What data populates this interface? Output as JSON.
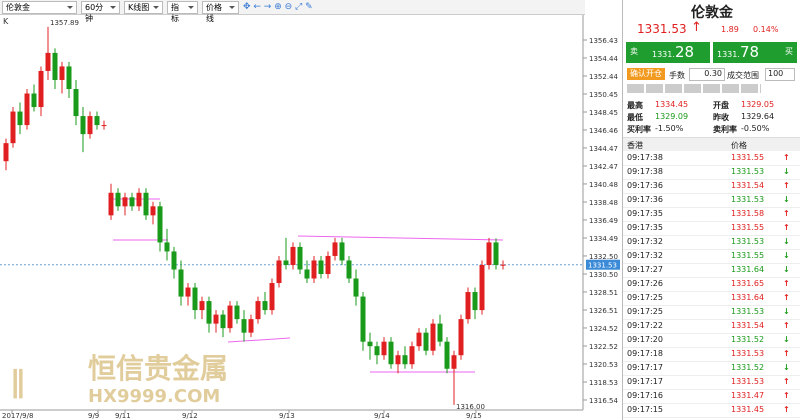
{
  "toolbar": {
    "symbol": "伦敦金",
    "period": "60分钟",
    "chart_kind": "K线图",
    "indicator": "指标",
    "price_line": "价格线"
  },
  "chart": {
    "type": "candlestick",
    "label": "K",
    "up_color": "#e02020",
    "down_color": "#1a9a1a",
    "ylim": [
      1315.43,
      1359.2
    ],
    "yticks": [
      1356.43,
      1354.44,
      1352.44,
      1350.45,
      1348.45,
      1346.46,
      1344.47,
      1342.47,
      1340.48,
      1338.48,
      1336.49,
      1334.49,
      {
        "value": 1332.5,
        "label": "1332.50"
      },
      {
        "value": 1330.5,
        "label": "1330.50"
      },
      1328.51,
      1326.51,
      1324.52,
      1322.52,
      1320.53,
      1318.53,
      1316.54
    ],
    "last_price": 1331.53,
    "xlabels": [
      "2017/9/8",
      "9/9",
      "9/11",
      "9/12",
      "9/13",
      "9/14",
      "9/15"
    ],
    "annotations": [
      "1357.89",
      "1316.00"
    ],
    "candles": [
      [
        1343.0,
        1345.5,
        1342.0,
        1345.0
      ],
      [
        1345.0,
        1349.0,
        1344.5,
        1348.5
      ],
      [
        1348.5,
        1349.5,
        1346.0,
        1347.0
      ],
      [
        1347.0,
        1351.0,
        1346.5,
        1350.5
      ],
      [
        1350.5,
        1351.5,
        1348.5,
        1349.0
      ],
      [
        1349.0,
        1353.5,
        1348.0,
        1353.0
      ],
      [
        1353.0,
        1357.89,
        1352.0,
        1355.0
      ],
      [
        1355.0,
        1355.5,
        1351.0,
        1352.0
      ],
      [
        1352.0,
        1354.0,
        1350.5,
        1353.5
      ],
      [
        1353.5,
        1354.0,
        1350.0,
        1351.0
      ],
      [
        1351.0,
        1352.0,
        1347.0,
        1348.0
      ],
      [
        1348.0,
        1349.0,
        1344.0,
        1346.0
      ],
      [
        1346.0,
        1348.5,
        1345.5,
        1348.0
      ],
      [
        1348.0,
        1348.5,
        1346.5,
        1347.0
      ],
      [
        1347.0,
        1347.5,
        1346.5,
        1347.0
      ],
      [
        1337.0,
        1340.5,
        1336.5,
        1339.5
      ],
      [
        1339.5,
        1340.0,
        1337.5,
        1338.0
      ],
      [
        1338.0,
        1339.5,
        1337.0,
        1339.0
      ],
      [
        1339.0,
        1339.5,
        1337.5,
        1338.0
      ],
      [
        1338.0,
        1340.0,
        1337.5,
        1339.5
      ],
      [
        1339.5,
        1340.0,
        1336.5,
        1337.0
      ],
      [
        1337.0,
        1338.5,
        1336.0,
        1338.0
      ],
      [
        1338.0,
        1338.5,
        1333.0,
        1334.0
      ],
      [
        1334.0,
        1335.5,
        1332.0,
        1333.0
      ],
      [
        1333.0,
        1333.5,
        1330.0,
        1331.0
      ],
      [
        1331.0,
        1332.0,
        1327.0,
        1328.0
      ],
      [
        1328.0,
        1329.5,
        1327.0,
        1329.0
      ],
      [
        1329.0,
        1329.5,
        1325.5,
        1326.5
      ],
      [
        1326.5,
        1328.0,
        1325.5,
        1327.5
      ],
      [
        1327.5,
        1328.0,
        1324.0,
        1325.0
      ],
      [
        1325.0,
        1326.5,
        1324.0,
        1326.0
      ],
      [
        1326.0,
        1326.5,
        1323.5,
        1324.5
      ],
      [
        1324.5,
        1327.5,
        1324.0,
        1327.0
      ],
      [
        1327.0,
        1327.5,
        1325.0,
        1325.5
      ],
      [
        1325.5,
        1326.5,
        1323.0,
        1324.0
      ],
      [
        1324.0,
        1326.0,
        1323.5,
        1325.5
      ],
      [
        1325.5,
        1328.0,
        1325.0,
        1327.5
      ],
      [
        1327.5,
        1328.5,
        1326.0,
        1326.5
      ],
      [
        1326.5,
        1330.0,
        1326.0,
        1329.5
      ],
      [
        1329.5,
        1332.5,
        1329.0,
        1332.0
      ],
      [
        1332.0,
        1334.5,
        1331.0,
        1331.5
      ],
      [
        1331.5,
        1334.0,
        1331.0,
        1333.5
      ],
      [
        1333.5,
        1334.0,
        1330.5,
        1331.0
      ],
      [
        1331.0,
        1332.0,
        1329.5,
        1330.0
      ],
      [
        1330.0,
        1332.5,
        1329.5,
        1332.0
      ],
      [
        1332.0,
        1332.5,
        1330.0,
        1330.5
      ],
      [
        1330.5,
        1333.0,
        1330.0,
        1332.5
      ],
      [
        1332.5,
        1334.5,
        1332.0,
        1334.0
      ],
      [
        1334.0,
        1334.5,
        1331.5,
        1332.0
      ],
      [
        1332.0,
        1332.5,
        1329.5,
        1330.0
      ],
      [
        1330.0,
        1331.0,
        1327.0,
        1328.0
      ],
      [
        1328.0,
        1328.5,
        1322.0,
        1323.0
      ],
      [
        1323.0,
        1324.0,
        1321.0,
        1322.5
      ],
      [
        1322.5,
        1323.0,
        1320.5,
        1321.5
      ],
      [
        1321.5,
        1323.5,
        1321.0,
        1323.0
      ],
      [
        1323.0,
        1323.5,
        1320.0,
        1320.5
      ],
      [
        1320.5,
        1322.0,
        1319.5,
        1321.5
      ],
      [
        1321.5,
        1322.5,
        1320.0,
        1320.5
      ],
      [
        1320.5,
        1323.0,
        1320.0,
        1322.5
      ],
      [
        1322.5,
        1324.5,
        1322.0,
        1324.0
      ],
      [
        1324.0,
        1324.5,
        1321.5,
        1322.0
      ],
      [
        1322.0,
        1325.5,
        1321.5,
        1325.0
      ],
      [
        1325.0,
        1326.0,
        1322.5,
        1323.0
      ],
      [
        1323.0,
        1323.5,
        1319.5,
        1320.0
      ],
      [
        1320.0,
        1322.0,
        1316.0,
        1321.5
      ],
      [
        1321.5,
        1326.0,
        1321.0,
        1325.5
      ],
      [
        1325.5,
        1329.0,
        1325.0,
        1328.5
      ],
      [
        1328.5,
        1329.0,
        1325.5,
        1326.5
      ],
      [
        1326.5,
        1332.0,
        1326.0,
        1331.5
      ],
      [
        1331.5,
        1334.5,
        1331.0,
        1334.0
      ],
      [
        1334.0,
        1334.45,
        1331.0,
        1331.5
      ],
      [
        1331.5,
        1332.0,
        1331.0,
        1331.53
      ]
    ],
    "watermark": {
      "cn": "恒信贵金属",
      "en": "HX9999.COM"
    }
  },
  "panel": {
    "title": "伦敦金",
    "price": "1331.53",
    "change": "1.89",
    "change_pct": "0.14%",
    "sell": {
      "label": "卖",
      "int": "1331.",
      "dec": "28"
    },
    "buy": {
      "label": "买",
      "int": "1331.",
      "dec": "78"
    },
    "order": {
      "button": "确认开仓",
      "lots_label": "手数",
      "lots": "0.30",
      "range_label": "成交范围",
      "range": "100"
    },
    "stats": [
      [
        "最高",
        "1334.45"
      ],
      [
        "开盘",
        "1329.05"
      ],
      [
        "最低",
        "1329.09"
      ],
      [
        "昨收",
        "1329.64"
      ],
      [
        "买利率",
        "-1.50%"
      ],
      [
        "卖利率",
        "-0.50%"
      ]
    ],
    "ticks": {
      "headers": [
        "香港",
        "价格"
      ],
      "rows": [
        {
          "time": "09:17:38",
          "price": "1331.55",
          "trend": "up"
        },
        {
          "time": "09:17:38",
          "price": "1331.53",
          "trend": "down"
        },
        {
          "time": "09:17:36",
          "price": "1331.54",
          "trend": "up"
        },
        {
          "time": "09:17:36",
          "price": "1331.53",
          "trend": "down"
        },
        {
          "time": "09:17:35",
          "price": "1331.58",
          "trend": "up"
        },
        {
          "time": "09:17:35",
          "price": "1331.55",
          "trend": "up"
        },
        {
          "time": "09:17:32",
          "price": "1331.53",
          "trend": "down"
        },
        {
          "time": "09:17:32",
          "price": "1331.55",
          "trend": "down"
        },
        {
          "time": "09:17:27",
          "price": "1331.64",
          "trend": "down"
        },
        {
          "time": "09:17:26",
          "price": "1331.65",
          "trend": "up"
        },
        {
          "time": "09:17:25",
          "price": "1331.64",
          "trend": "up"
        },
        {
          "time": "09:17:25",
          "price": "1331.53",
          "trend": "down"
        },
        {
          "time": "09:17:22",
          "price": "1331.54",
          "trend": "up"
        },
        {
          "time": "09:17:20",
          "price": "1331.52",
          "trend": "down"
        },
        {
          "time": "09:17:18",
          "price": "1331.53",
          "trend": "up"
        },
        {
          "time": "09:17:17",
          "price": "1331.52",
          "trend": "down"
        },
        {
          "time": "09:17:17",
          "price": "1331.53",
          "trend": "up"
        },
        {
          "time": "09:17:16",
          "price": "1331.47",
          "trend": "up"
        },
        {
          "time": "09:17:15",
          "price": "1331.45",
          "trend": "up"
        }
      ]
    }
  }
}
